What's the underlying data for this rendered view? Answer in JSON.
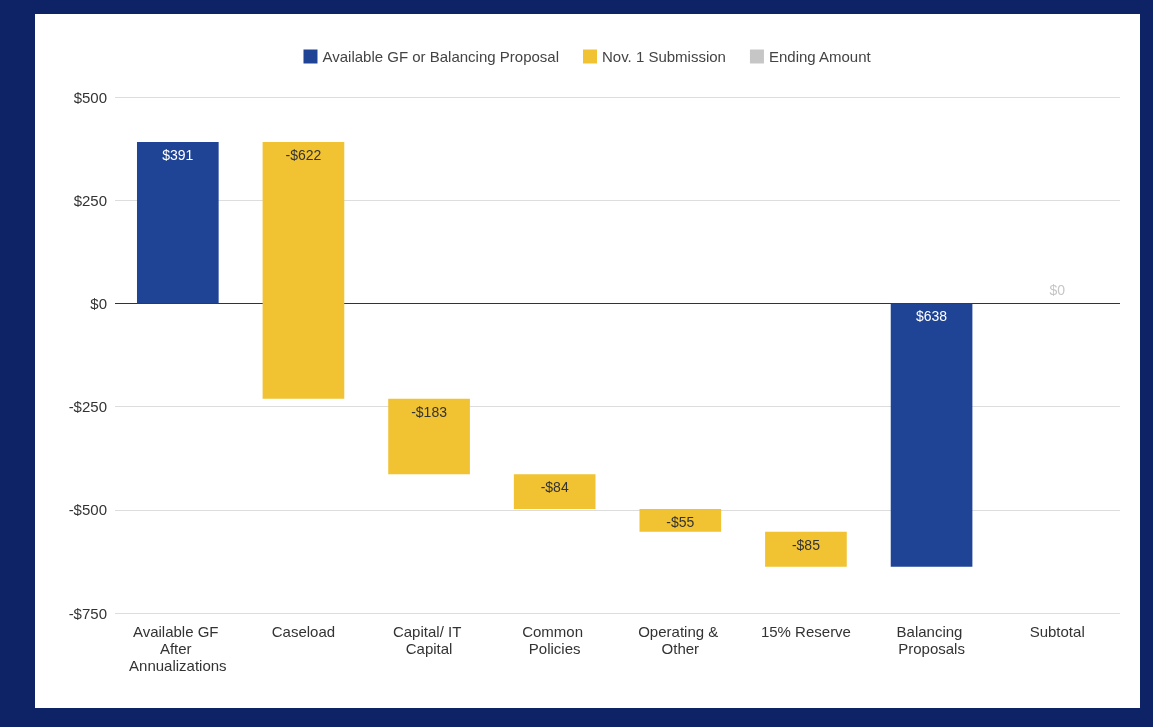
{
  "chart_data": {
    "type": "bar",
    "categories": [
      "Available GF After Annualizations",
      "Caseload",
      "Capital/ IT Capital",
      "Common Policies",
      "Operating & Other",
      "15% Reserve",
      "Balancing Proposals",
      "Subtotal"
    ],
    "series": [
      {
        "name": "Available GF or Balancing Proposal",
        "color": "#1f4496",
        "base": [
          0,
          null,
          null,
          null,
          null,
          null,
          -638,
          null
        ],
        "values": [
          391,
          null,
          null,
          null,
          null,
          null,
          638,
          null
        ],
        "value_labels": [
          "$391",
          null,
          null,
          null,
          null,
          null,
          "$638",
          null
        ]
      },
      {
        "name": "Nov. 1 Submission",
        "color": "#f1c232",
        "base": [
          null,
          391,
          -231,
          -414,
          -498,
          -553,
          null,
          null
        ],
        "values": [
          null,
          -622,
          -183,
          -84,
          -55,
          -85,
          null,
          null
        ],
        "value_labels": [
          null,
          "-$622",
          "-$183",
          "-$84",
          "-$55",
          "-$85",
          null,
          null
        ]
      },
      {
        "name": "Ending Amount",
        "color": "#c6c6c6",
        "values": [
          null,
          null,
          null,
          null,
          null,
          null,
          null,
          0
        ],
        "value_labels": [
          null,
          null,
          null,
          null,
          null,
          null,
          null,
          "$0"
        ]
      }
    ],
    "ylim": [
      -750,
      500
    ],
    "yticks": [
      {
        "value": -750,
        "label": "-$750"
      },
      {
        "value": -500,
        "label": "-$500"
      },
      {
        "value": -250,
        "label": "-$250"
      },
      {
        "value": 0,
        "label": "$0"
      },
      {
        "value": 250,
        "label": "$250"
      },
      {
        "value": 500,
        "label": "$500"
      }
    ],
    "grid": "y",
    "legend": "top"
  }
}
